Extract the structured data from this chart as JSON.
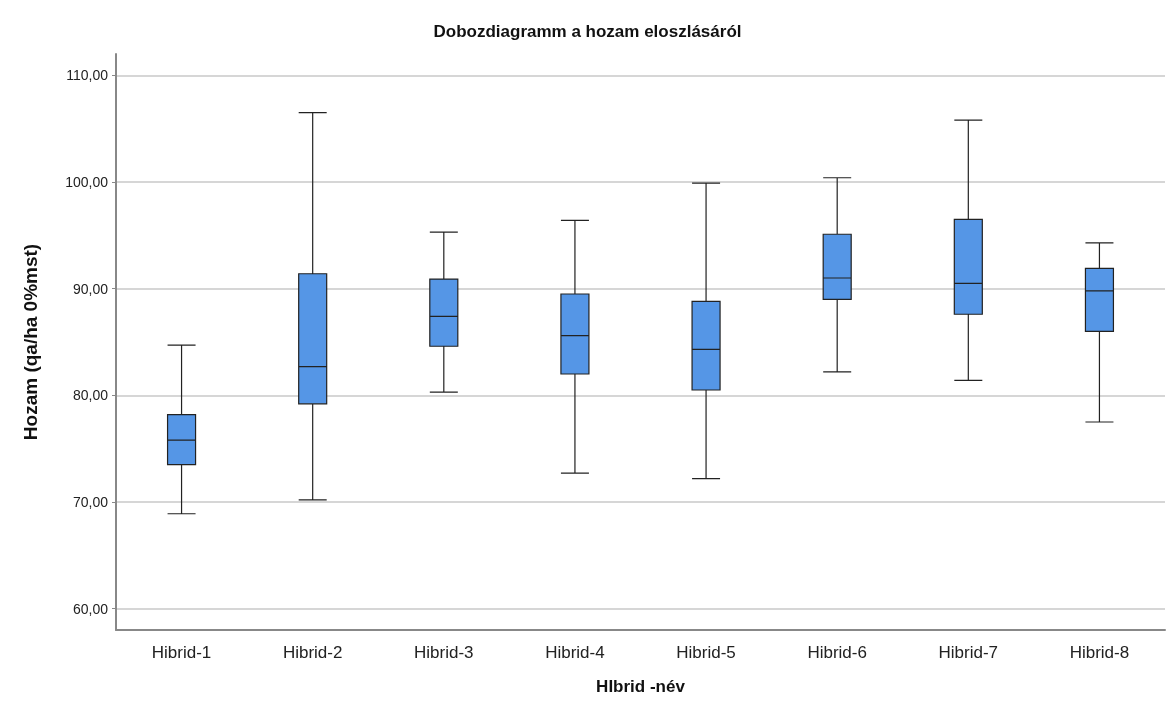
{
  "chart_data": {
    "type": "box",
    "title": "Dobozdiagramm a hozam eloszlásáról",
    "xlabel": "HIbrid -név",
    "ylabel": "Hozam (qa/ha 0%mst)",
    "categories": [
      "Hibrid-1",
      "Hibrid-2",
      "Hibrid-3",
      "Hibrid-4",
      "Hibrid-5",
      "Hibrid-6",
      "Hibrid-7",
      "Hibrid-8"
    ],
    "color": "#5596e6",
    "boxes": [
      {
        "low": 68.9,
        "q1": 73.5,
        "median": 75.8,
        "q3": 78.2,
        "high": 84.7
      },
      {
        "low": 70.2,
        "q1": 79.2,
        "median": 82.7,
        "q3": 91.4,
        "high": 106.5
      },
      {
        "low": 80.3,
        "q1": 84.6,
        "median": 87.4,
        "q3": 90.9,
        "high": 95.3
      },
      {
        "low": 72.7,
        "q1": 82.0,
        "median": 85.6,
        "q3": 89.5,
        "high": 96.4
      },
      {
        "low": 72.2,
        "q1": 80.5,
        "median": 84.3,
        "q3": 88.8,
        "high": 99.9
      },
      {
        "low": 82.2,
        "q1": 89.0,
        "median": 91.0,
        "q3": 95.1,
        "high": 100.4
      },
      {
        "low": 81.4,
        "q1": 87.6,
        "median": 90.5,
        "q3": 96.5,
        "high": 105.8
      },
      {
        "low": 77.5,
        "q1": 86.0,
        "median": 89.8,
        "q3": 91.9,
        "high": 94.3
      }
    ],
    "ylim": [
      58,
      112
    ],
    "yticks": [
      {
        "value": 60,
        "label": "60,00"
      },
      {
        "value": 70,
        "label": "70,00"
      },
      {
        "value": 80,
        "label": "80,00"
      },
      {
        "value": 90,
        "label": "90,00"
      },
      {
        "value": 100,
        "label": "100,00"
      },
      {
        "value": 110,
        "label": "110,00"
      }
    ],
    "grid": "y"
  }
}
